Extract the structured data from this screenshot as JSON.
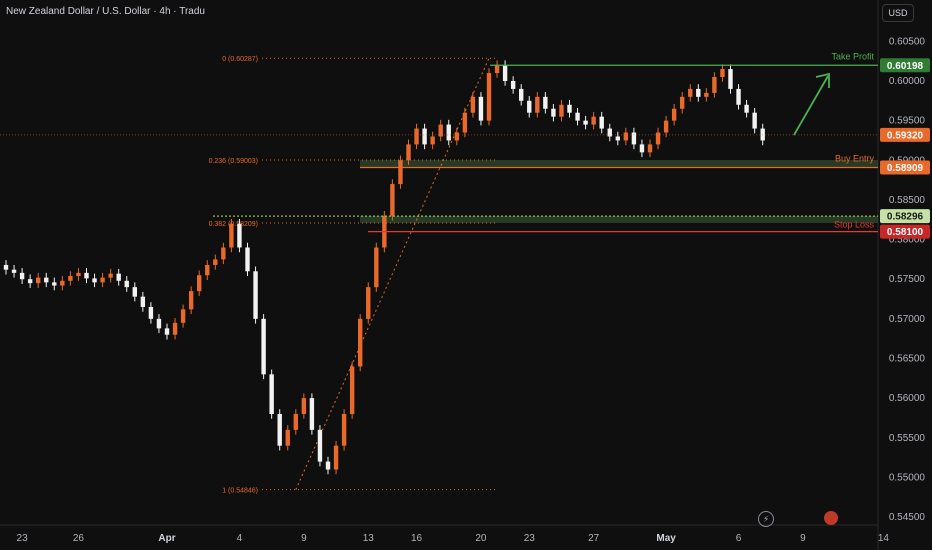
{
  "header": {
    "title": "New Zealand Dollar / U.S. Dollar · 4h · Tradu",
    "currency": "USD"
  },
  "icons": {
    "bolt": "lightning-icon",
    "earnings": "event-icon"
  },
  "colors": {
    "background": "#0f0f0f",
    "up": "#e8692a",
    "down": "#f2f2f2",
    "fib": "#e8692a",
    "take_profit": "#4caf50",
    "buy_entry": "#e8692a",
    "stop_loss": "#e53935",
    "support_zone": "#2f4a2f",
    "axis_text": "#b2b5be"
  },
  "chart_data": {
    "type": "candlestick",
    "title": "New Zealand Dollar / U.S. Dollar · 4h · Tradu",
    "y_ticks": [
      "0.60500",
      "0.60000",
      "0.59500",
      "0.59000",
      "0.58500",
      "0.58000",
      "0.57500",
      "0.57000",
      "0.56500",
      "0.56000",
      "0.55500",
      "0.55000",
      "0.54500"
    ],
    "ylim": [
      0.544,
      0.6087
    ],
    "x_ticks": [
      {
        "label": "23",
        "i": 2
      },
      {
        "label": "26",
        "i": 9
      },
      {
        "label": "Apr",
        "i": 20
      },
      {
        "label": "4",
        "i": 29
      },
      {
        "label": "9",
        "i": 37
      },
      {
        "label": "13",
        "i": 45
      },
      {
        "label": "16",
        "i": 51
      },
      {
        "label": "20",
        "i": 59
      },
      {
        "label": "23",
        "i": 65
      },
      {
        "label": "27",
        "i": 73
      },
      {
        "label": "May",
        "i": 82
      },
      {
        "label": "6",
        "i": 91
      },
      {
        "label": "9",
        "i": 99
      },
      {
        "label": "14",
        "i": 109
      }
    ],
    "fib_levels": [
      {
        "label": "0 (0.60287)",
        "value": 0.60287
      },
      {
        "label": "0.236 (0.59003)",
        "value": 0.59003
      },
      {
        "label": "0.382 (0.58209)",
        "value": 0.58209
      },
      {
        "label": "1 (0.54846)",
        "value": 0.54846
      }
    ],
    "levels": {
      "take_profit": {
        "label": "Take Profit",
        "value": 0.60198,
        "price": "0.60198"
      },
      "buy_entry": {
        "label": "Buy Entry",
        "value": 0.58909,
        "price": "0.58909"
      },
      "stop_loss": {
        "label": "Stop Loss",
        "value": 0.581,
        "price": "0.58100"
      },
      "support_top": {
        "value": 0.58296,
        "price": "0.58296"
      },
      "current": {
        "value": 0.5932,
        "price": "0.59320"
      }
    },
    "closes": [
      0.5762,
      0.5758,
      0.575,
      0.5745,
      0.5752,
      0.5746,
      0.5742,
      0.5748,
      0.5754,
      0.5758,
      0.5751,
      0.5746,
      0.5752,
      0.5757,
      0.5748,
      0.574,
      0.5728,
      0.5715,
      0.57,
      0.5688,
      0.568,
      0.5695,
      0.5712,
      0.5735,
      0.5755,
      0.5768,
      0.5775,
      0.579,
      0.582,
      0.579,
      0.576,
      0.57,
      0.563,
      0.558,
      0.554,
      0.556,
      0.558,
      0.56,
      0.556,
      0.552,
      0.551,
      0.554,
      0.558,
      0.564,
      0.57,
      0.574,
      0.579,
      0.583,
      0.587,
      0.59,
      0.592,
      0.594,
      0.592,
      0.593,
      0.5945,
      0.5925,
      0.5935,
      0.596,
      0.598,
      0.595,
      0.601,
      0.602,
      0.6,
      0.599,
      0.5975,
      0.596,
      0.598,
      0.5965,
      0.5955,
      0.597,
      0.596,
      0.595,
      0.5945,
      0.5955,
      0.594,
      0.593,
      0.5925,
      0.5935,
      0.592,
      0.591,
      0.592,
      0.5935,
      0.595,
      0.5965,
      0.598,
      0.599,
      0.598,
      0.5985,
      0.6005,
      0.6015,
      0.599,
      0.597,
      0.596,
      0.594,
      0.5925
    ]
  }
}
